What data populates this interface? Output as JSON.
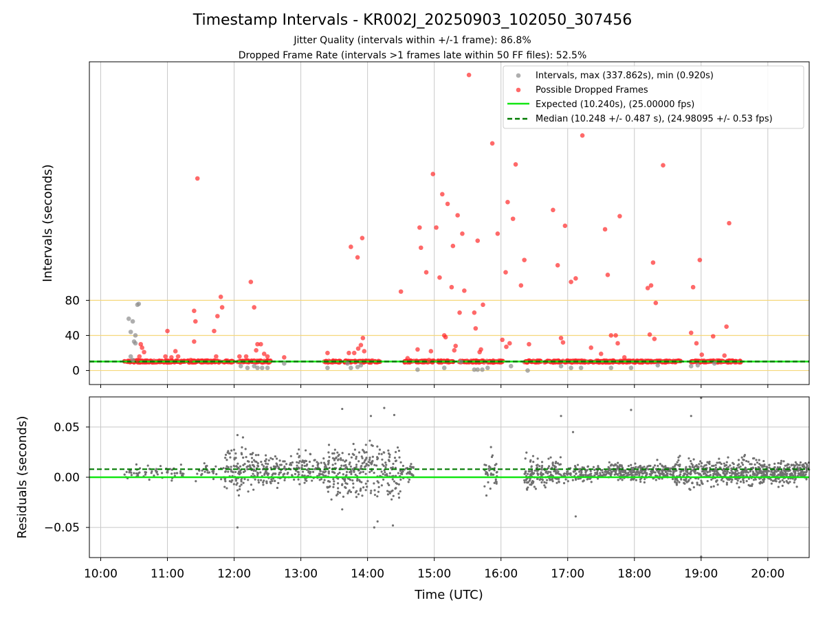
{
  "chart_data": [
    {
      "type": "scatter",
      "title": "Timestamp Intervals - KR002J_20250903_102050_307456",
      "subtitle_1": "Jitter Quality (intervals within +/-1 frame): 86.8%",
      "subtitle_2": "Dropped Frame Rate (intervals >1 frames late within 50 FF files): 52.5%",
      "ylabel": "Intervals (seconds)",
      "ylim": [
        -16,
        352
      ],
      "yticks": [
        "0",
        "40",
        "80"
      ],
      "ytick_values": [
        0,
        40,
        80
      ],
      "reference_lines": [
        0,
        40,
        80
      ],
      "reference_line_color": "#f5d77a",
      "xlim": [
        9.83,
        20.62
      ],
      "grid": "vertical",
      "legend_position": "top-right",
      "legend": {
        "intervals": "Intervals, max (337.862s), min (0.920s)",
        "dropped": "Possible Dropped Frames",
        "expected": "Expected (10.240s), (25.00000 fps)",
        "median": "Median (10.248 +/- 0.487 s), (24.98095 +/- 0.53 fps)"
      },
      "expected_value": 10.24,
      "median_value": 10.248,
      "colors": {
        "intervals": "#8c8c8c",
        "dropped": "#ff2a2a",
        "expected": "#11e611",
        "median": "#007a00"
      },
      "series": [
        {
          "name": "Possible Dropped Frames",
          "points": [
            [
              10.6,
              30
            ],
            [
              10.62,
              26
            ],
            [
              10.65,
              21
            ],
            [
              10.58,
              16
            ],
            [
              10.55,
              12
            ],
            [
              11.0,
              45
            ],
            [
              11.12,
              22
            ],
            [
              11.06,
              15
            ],
            [
              11.16,
              16
            ],
            [
              10.97,
              16
            ],
            [
              11.4,
              68
            ],
            [
              11.42,
              56
            ],
            [
              11.4,
              33
            ],
            [
              11.35,
              12
            ],
            [
              11.45,
              219
            ],
            [
              11.7,
              45
            ],
            [
              11.75,
              62
            ],
            [
              11.8,
              84
            ],
            [
              11.82,
              72
            ],
            [
              11.73,
              16
            ],
            [
              12.25,
              101
            ],
            [
              12.3,
              72
            ],
            [
              12.35,
              30
            ],
            [
              12.4,
              30
            ],
            [
              12.33,
              23
            ],
            [
              12.18,
              16
            ],
            [
              12.08,
              16
            ],
            [
              12.45,
              19
            ],
            [
              12.5,
              16
            ],
            [
              12.75,
              15
            ],
            [
              13.4,
              20
            ],
            [
              13.75,
              141
            ],
            [
              13.85,
              129
            ],
            [
              13.92,
              151
            ],
            [
              13.93,
              37
            ],
            [
              13.9,
              29
            ],
            [
              13.86,
              25
            ],
            [
              13.8,
              20
            ],
            [
              13.72,
              20
            ],
            [
              13.95,
              22
            ],
            [
              14.5,
              90
            ],
            [
              14.6,
              14
            ],
            [
              14.75,
              24
            ],
            [
              14.78,
              163
            ],
            [
              14.8,
              140
            ],
            [
              14.88,
              112
            ],
            [
              14.95,
              22
            ],
            [
              14.98,
              224
            ],
            [
              14.92,
              12
            ],
            [
              15.03,
              163
            ],
            [
              15.08,
              106
            ],
            [
              15.12,
              201
            ],
            [
              15.15,
              40
            ],
            [
              15.17,
              38
            ],
            [
              15.2,
              190
            ],
            [
              15.26,
              95
            ],
            [
              15.28,
              142
            ],
            [
              15.3,
              23
            ],
            [
              15.32,
              28
            ],
            [
              15.35,
              177
            ],
            [
              15.38,
              66
            ],
            [
              15.42,
              156
            ],
            [
              15.45,
              91
            ],
            [
              15.52,
              337
            ],
            [
              15.6,
              66
            ],
            [
              15.62,
              48
            ],
            [
              15.65,
              148
            ],
            [
              15.68,
              21
            ],
            [
              15.7,
              24
            ],
            [
              15.73,
              75
            ],
            [
              15.87,
              259
            ],
            [
              15.95,
              156
            ],
            [
              16.02,
              35
            ],
            [
              16.07,
              112
            ],
            [
              16.08,
              27
            ],
            [
              16.1,
              192
            ],
            [
              16.13,
              31
            ],
            [
              16.18,
              173
            ],
            [
              16.22,
              235
            ],
            [
              16.3,
              97
            ],
            [
              16.35,
              126
            ],
            [
              16.42,
              30
            ],
            [
              16.78,
              183
            ],
            [
              16.85,
              120
            ],
            [
              16.9,
              37
            ],
            [
              16.93,
              32
            ],
            [
              16.96,
              165
            ],
            [
              17.05,
              101
            ],
            [
              17.12,
              105
            ],
            [
              17.22,
              268
            ],
            [
              17.35,
              26
            ],
            [
              17.5,
              19
            ],
            [
              17.56,
              161
            ],
            [
              17.6,
              109
            ],
            [
              17.65,
              40
            ],
            [
              17.72,
              40
            ],
            [
              17.75,
              31
            ],
            [
              17.78,
              176
            ],
            [
              17.85,
              15
            ],
            [
              18.2,
              94
            ],
            [
              18.25,
              97
            ],
            [
              18.28,
              123
            ],
            [
              18.3,
              36
            ],
            [
              18.32,
              77
            ],
            [
              18.23,
              41
            ],
            [
              18.43,
              234
            ],
            [
              18.85,
              43
            ],
            [
              18.88,
              95
            ],
            [
              18.93,
              31
            ],
            [
              18.98,
              126
            ],
            [
              19.01,
              18
            ],
            [
              19.18,
              39
            ],
            [
              19.35,
              17
            ],
            [
              19.38,
              50
            ],
            [
              19.42,
              168
            ]
          ]
        },
        {
          "name": "Intervals, max (337.862s), min (0.920s)",
          "points": [
            [
              10.42,
              59
            ],
            [
              10.45,
              44
            ],
            [
              10.48,
              56
            ],
            [
              10.52,
              40
            ],
            [
              10.5,
              33
            ],
            [
              10.55,
              75
            ],
            [
              10.57,
              76
            ],
            [
              10.45,
              16
            ],
            [
              10.48,
              12
            ],
            [
              10.52,
              31
            ],
            [
              12.1,
              5
            ],
            [
              12.2,
              3
            ],
            [
              12.3,
              5
            ],
            [
              12.35,
              3
            ],
            [
              12.42,
              3
            ],
            [
              12.5,
              3
            ],
            [
              12.75,
              8
            ],
            [
              13.4,
              3
            ],
            [
              13.7,
              8
            ],
            [
              13.75,
              3
            ],
            [
              13.85,
              4
            ],
            [
              13.9,
              6
            ],
            [
              14.75,
              1
            ],
            [
              15.15,
              3
            ],
            [
              15.4,
              10
            ],
            [
              15.6,
              1
            ],
            [
              15.65,
              1
            ],
            [
              15.72,
              1
            ],
            [
              15.8,
              3
            ],
            [
              16.15,
              5
            ],
            [
              16.4,
              0
            ],
            [
              16.9,
              5
            ],
            [
              17.05,
              3
            ],
            [
              17.2,
              3
            ],
            [
              17.65,
              3
            ],
            [
              17.95,
              3
            ],
            [
              18.35,
              6
            ],
            [
              18.85,
              5
            ],
            [
              18.95,
              6
            ],
            [
              19.2,
              8
            ]
          ]
        }
      ]
    },
    {
      "type": "scatter",
      "xlabel": "Time (UTC)",
      "ylabel": "Residuals (seconds)",
      "ylim": [
        -0.08,
        0.08
      ],
      "yticks": [
        "0.05",
        "0.00",
        "−0.05"
      ],
      "ytick_values": [
        0.05,
        0.0,
        -0.05
      ],
      "xlim": [
        9.83,
        20.62
      ],
      "xticks": [
        "10:00",
        "11:00",
        "12:00",
        "13:00",
        "14:00",
        "15:00",
        "16:00",
        "17:00",
        "18:00",
        "19:00",
        "20:00"
      ],
      "xtick_values": [
        10,
        11,
        12,
        13,
        14,
        15,
        16,
        17,
        18,
        19,
        20
      ],
      "grid": "both",
      "expected_value": 0.0,
      "median_value": 0.008,
      "colors": {
        "residuals": "#707070",
        "expected": "#11e611",
        "median": "#007a00"
      },
      "series": [
        {
          "name": "",
          "clusters": [
            [
              10.35,
              11.25,
              0.004,
              0.004,
              60
            ],
            [
              11.4,
              11.85,
              0.004,
              0.004,
              30
            ],
            [
              11.85,
              12.3,
              0.007,
              0.012,
              110
            ],
            [
              12.3,
              13.4,
              0.007,
              0.007,
              230
            ],
            [
              13.4,
              13.7,
              0.006,
              0.012,
              90
            ],
            [
              13.7,
              14.5,
              0.006,
              0.014,
              190
            ],
            [
              14.5,
              14.7,
              0.005,
              0.004,
              30
            ],
            [
              15.75,
              15.95,
              0.004,
              0.008,
              35
            ],
            [
              16.35,
              16.9,
              0.004,
              0.007,
              160
            ],
            [
              16.9,
              17.6,
              0.004,
              0.004,
              120
            ],
            [
              17.6,
              18.6,
              0.005,
              0.004,
              260
            ],
            [
              18.6,
              19.0,
              0.004,
              0.008,
              110
            ],
            [
              19.0,
              20.62,
              0.005,
              0.006,
              560
            ]
          ],
          "outliers": [
            [
              12.05,
              -0.05
            ],
            [
              12.05,
              0.042
            ],
            [
              13.62,
              0.068
            ],
            [
              13.62,
              -0.032
            ],
            [
              14.05,
              0.061
            ],
            [
              14.1,
              -0.05
            ],
            [
              14.25,
              0.069
            ],
            [
              14.4,
              0.062
            ],
            [
              14.38,
              -0.048
            ],
            [
              14.15,
              -0.044
            ],
            [
              16.9,
              0.061
            ],
            [
              17.12,
              -0.039
            ],
            [
              17.95,
              0.067
            ],
            [
              18.85,
              0.061
            ],
            [
              19.0,
              0.079
            ],
            [
              19.0,
              -0.079
            ],
            [
              17.08,
              0.045
            ],
            [
              15.85,
              0.03
            ]
          ]
        }
      ]
    }
  ]
}
